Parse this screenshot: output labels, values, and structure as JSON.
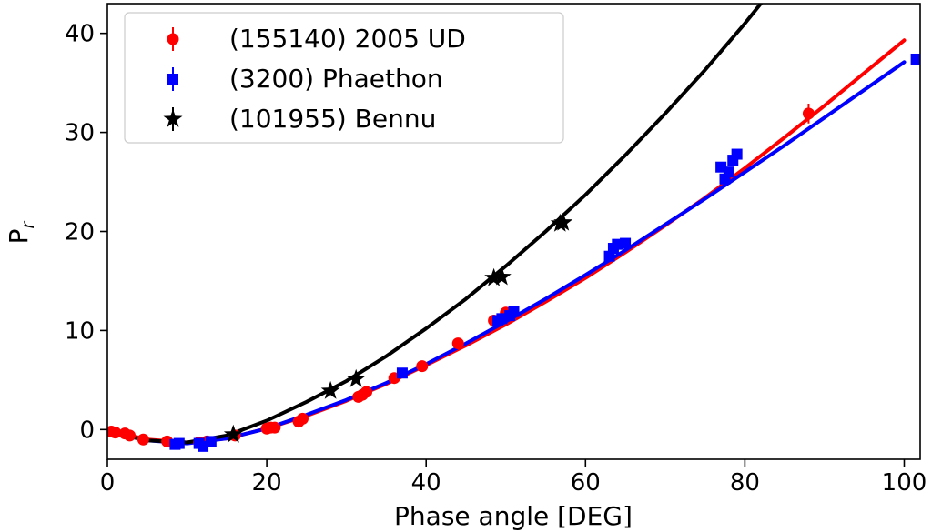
{
  "chart_data": {
    "type": "scatter",
    "title": "",
    "xlabel": "Phase angle [DEG]",
    "ylabel": "P",
    "ylabel_subscript": "r",
    "xlim": [
      0,
      102
    ],
    "ylim": [
      -3,
      43
    ],
    "xticks": [
      0,
      20,
      40,
      60,
      80,
      100
    ],
    "yticks": [
      0,
      10,
      20,
      30,
      40
    ],
    "grid": false,
    "legend_position": "top-left",
    "series": [
      {
        "name": "(155140) 2005 UD",
        "color": "#ff0000",
        "marker": "circle",
        "points": [
          [
            0.5,
            -0.2
          ],
          [
            1.0,
            -0.3
          ],
          [
            2.2,
            -0.4
          ],
          [
            2.8,
            -0.6
          ],
          [
            4.5,
            -1.0
          ],
          [
            7.5,
            -1.2
          ],
          [
            11.5,
            -1.3
          ],
          [
            12.5,
            -1.2
          ],
          [
            16.0,
            -0.6
          ],
          [
            20.0,
            0.1
          ],
          [
            20.5,
            0.2
          ],
          [
            21.0,
            0.2
          ],
          [
            24.0,
            0.8
          ],
          [
            24.5,
            1.1
          ],
          [
            31.5,
            3.3
          ],
          [
            32.0,
            3.5
          ],
          [
            32.5,
            3.8
          ],
          [
            36.0,
            5.2
          ],
          [
            39.5,
            6.4
          ],
          [
            44.0,
            8.7
          ],
          [
            48.5,
            11.0
          ],
          [
            50.0,
            11.8
          ],
          [
            88.0,
            31.9
          ]
        ],
        "errors": [
          [
            0.5,
            0.2
          ],
          [
            1.0,
            0.2
          ],
          [
            2.2,
            0.2
          ],
          [
            2.8,
            0.2
          ],
          [
            4.5,
            0.2
          ],
          [
            7.5,
            0.2
          ],
          [
            11.5,
            0.2
          ],
          [
            12.5,
            0.2
          ],
          [
            16.0,
            0.3
          ],
          [
            20.0,
            0.3
          ],
          [
            20.5,
            0.3
          ],
          [
            21.0,
            0.3
          ],
          [
            24.0,
            0.3
          ],
          [
            24.5,
            0.3
          ],
          [
            31.5,
            0.4
          ],
          [
            32.0,
            0.4
          ],
          [
            32.5,
            0.4
          ],
          [
            36.0,
            0.4
          ],
          [
            39.5,
            0.4
          ],
          [
            44.0,
            0.4
          ],
          [
            48.5,
            0.4
          ],
          [
            50.0,
            0.4
          ],
          [
            88.0,
            1.0
          ]
        ],
        "fit": [
          [
            0,
            -0.1
          ],
          [
            5,
            -1.0
          ],
          [
            10,
            -1.3
          ],
          [
            15,
            -0.9
          ],
          [
            20,
            0.1
          ],
          [
            25,
            1.4
          ],
          [
            30,
            2.9
          ],
          [
            35,
            4.6
          ],
          [
            40,
            6.5
          ],
          [
            45,
            8.5
          ],
          [
            50,
            10.6
          ],
          [
            55,
            12.9
          ],
          [
            60,
            15.3
          ],
          [
            65,
            17.9
          ],
          [
            70,
            20.6
          ],
          [
            75,
            23.4
          ],
          [
            80,
            26.4
          ],
          [
            85,
            29.5
          ],
          [
            90,
            32.7
          ],
          [
            95,
            36.0
          ],
          [
            100,
            39.3
          ]
        ]
      },
      {
        "name": "(3200) Phaethon",
        "color": "#0000ff",
        "marker": "square",
        "points": [
          [
            8.5,
            -1.5
          ],
          [
            9.0,
            -1.4
          ],
          [
            11.5,
            -1.4
          ],
          [
            12.0,
            -1.7
          ],
          [
            13.0,
            -1.2
          ],
          [
            37.0,
            5.7
          ],
          [
            49.0,
            11.0
          ],
          [
            49.5,
            11.2
          ],
          [
            50.5,
            11.5
          ],
          [
            51.0,
            11.9
          ],
          [
            63.0,
            17.5
          ],
          [
            63.5,
            18.3
          ],
          [
            64.0,
            18.7
          ],
          [
            65.0,
            18.8
          ],
          [
            77.0,
            26.5
          ],
          [
            77.5,
            25.3
          ],
          [
            78.0,
            26.0
          ],
          [
            78.5,
            27.2
          ],
          [
            79.0,
            27.8
          ],
          [
            101.5,
            37.4
          ]
        ],
        "errors": [
          [
            8.5,
            0.3
          ],
          [
            9.0,
            0.3
          ],
          [
            11.5,
            0.3
          ],
          [
            12.0,
            0.4
          ],
          [
            13.0,
            0.3
          ],
          [
            37.0,
            0.3
          ],
          [
            49.0,
            0.3
          ],
          [
            49.5,
            0.3
          ],
          [
            50.5,
            0.3
          ],
          [
            51.0,
            0.3
          ],
          [
            63.0,
            0.4
          ],
          [
            63.5,
            0.4
          ],
          [
            64.0,
            0.4
          ],
          [
            65.0,
            0.4
          ],
          [
            77.0,
            0.5
          ],
          [
            77.5,
            0.5
          ],
          [
            78.0,
            0.5
          ],
          [
            78.5,
            0.5
          ],
          [
            79.0,
            0.5
          ],
          [
            101.5,
            0.5
          ]
        ],
        "fit": [
          [
            0,
            -0.2
          ],
          [
            5,
            -1.1
          ],
          [
            10,
            -1.4
          ],
          [
            15,
            -0.9
          ],
          [
            20,
            0.1
          ],
          [
            25,
            1.5
          ],
          [
            30,
            3.0
          ],
          [
            35,
            4.7
          ],
          [
            40,
            6.6
          ],
          [
            45,
            8.7
          ],
          [
            50,
            10.9
          ],
          [
            55,
            13.2
          ],
          [
            60,
            15.6
          ],
          [
            65,
            18.1
          ],
          [
            70,
            20.7
          ],
          [
            75,
            23.3
          ],
          [
            80,
            26.0
          ],
          [
            85,
            28.7
          ],
          [
            90,
            31.5
          ],
          [
            95,
            34.3
          ],
          [
            100,
            37.1
          ]
        ]
      },
      {
        "name": "(101955) Bennu",
        "color": "#000000",
        "marker": "star",
        "points": [
          [
            15.8,
            -0.5
          ],
          [
            28.0,
            3.9
          ],
          [
            31.2,
            5.1
          ],
          [
            48.5,
            15.3
          ],
          [
            49.5,
            15.4
          ],
          [
            56.8,
            20.8
          ],
          [
            57.2,
            20.9
          ]
        ],
        "errors": [
          [
            15.8,
            0.2
          ],
          [
            28.0,
            0.2
          ],
          [
            31.2,
            0.2
          ],
          [
            48.5,
            0.2
          ],
          [
            49.5,
            0.2
          ],
          [
            56.8,
            0.2
          ],
          [
            57.2,
            0.2
          ]
        ],
        "fit": [
          [
            0,
            -0.2
          ],
          [
            5,
            -1.1
          ],
          [
            10,
            -1.3
          ],
          [
            15,
            -0.6
          ],
          [
            20,
            0.9
          ],
          [
            25,
            2.8
          ],
          [
            30,
            4.9
          ],
          [
            35,
            7.4
          ],
          [
            40,
            10.2
          ],
          [
            45,
            13.2
          ],
          [
            50,
            16.5
          ],
          [
            55,
            20.0
          ],
          [
            60,
            23.7
          ],
          [
            65,
            27.7
          ],
          [
            70,
            31.9
          ],
          [
            75,
            36.3
          ],
          [
            80,
            41.0
          ],
          [
            82,
            43.0
          ]
        ]
      }
    ]
  }
}
